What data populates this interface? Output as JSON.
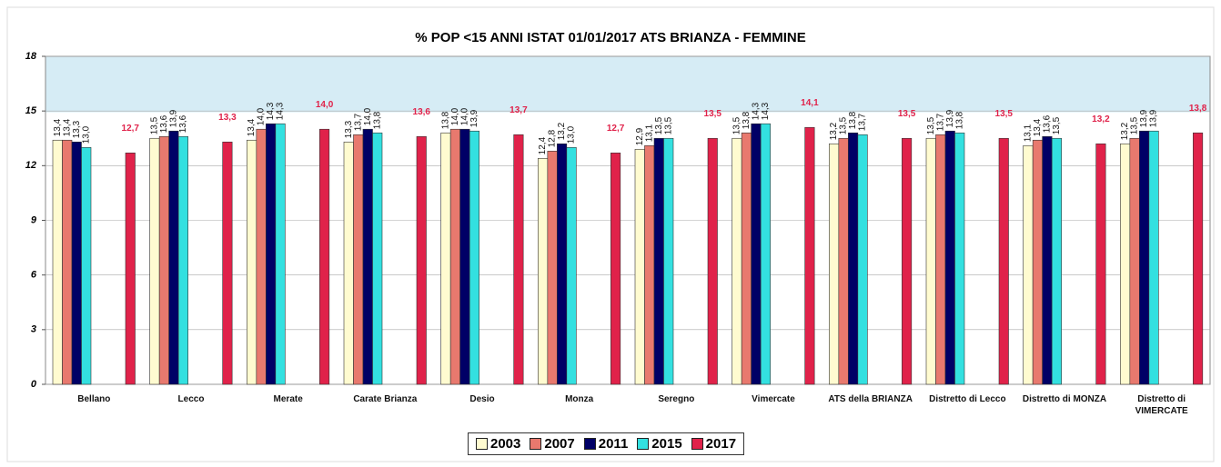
{
  "chart_data": {
    "type": "bar",
    "title": "% POP <15 ANNI ISTAT 01/01/2017  ATS BRIANZA - FEMMINE",
    "categories": [
      "Bellano",
      "Lecco",
      "Merate",
      "Carate Brianza",
      "Desio",
      "Monza",
      "Seregno",
      "Vimercate",
      "ATS della BRIANZA",
      "Distretto di Lecco",
      "Distretto di MONZA",
      "Distretto di VIMERCATE"
    ],
    "series": [
      {
        "name": "2003",
        "color": "#fffbd0",
        "values": [
          13.4,
          13.5,
          13.4,
          13.3,
          13.8,
          12.4,
          12.9,
          13.5,
          13.2,
          13.5,
          13.1,
          13.2
        ],
        "value_labels": [
          "13,4",
          "13,5",
          "13,4",
          "13,3",
          "13,8",
          "12,4",
          "12,9",
          "13,5",
          "13,2",
          "13,5",
          "13,1",
          "13,2"
        ]
      },
      {
        "name": "2007",
        "color": "#e8796e",
        "values": [
          13.4,
          13.6,
          14.0,
          13.7,
          14.0,
          12.8,
          13.1,
          13.8,
          13.5,
          13.7,
          13.4,
          13.5
        ],
        "value_labels": [
          "13,4",
          "13,6",
          "14,0",
          "13,7",
          "14,0",
          "12,8",
          "13,1",
          "13,8",
          "13,5",
          "13,7",
          "13,4",
          "13,5"
        ]
      },
      {
        "name": "2011",
        "color": "#000066",
        "values": [
          13.3,
          13.9,
          14.3,
          14.0,
          14.0,
          13.2,
          13.5,
          14.3,
          13.8,
          13.9,
          13.6,
          13.9
        ],
        "value_labels": [
          "13,3",
          "13,9",
          "14,3",
          "14,0",
          "14,0",
          "13,2",
          "13,5",
          "14,3",
          "13,8",
          "13,9",
          "13,6",
          "13,9"
        ]
      },
      {
        "name": "2015",
        "color": "#33e0e0",
        "values": [
          13.0,
          13.6,
          14.3,
          13.8,
          13.9,
          13.0,
          13.5,
          14.3,
          13.7,
          13.8,
          13.5,
          13.9
        ],
        "value_labels": [
          "13,0",
          "13,6",
          "14,3",
          "13,8",
          "13,9",
          "13,0",
          "13,5",
          "14,3",
          "13,7",
          "13,8",
          "13,5",
          "13,9"
        ]
      },
      {
        "name": "2017",
        "color": "#e0224a",
        "values": [
          12.7,
          13.3,
          14.0,
          13.6,
          13.7,
          12.7,
          13.5,
          14.1,
          13.5,
          13.5,
          13.2,
          13.8
        ],
        "value_labels": [
          "12,7",
          "13,3",
          "14,0",
          "13,6",
          "13,7",
          "12,7",
          "13,5",
          "14,1",
          "13,5",
          "13,5",
          "13,2",
          "13,8"
        ]
      }
    ],
    "ylim": [
      0,
      18
    ],
    "yticks": [
      0,
      3,
      6,
      9,
      12,
      15,
      18
    ],
    "grid": true,
    "legend": "bottom"
  }
}
